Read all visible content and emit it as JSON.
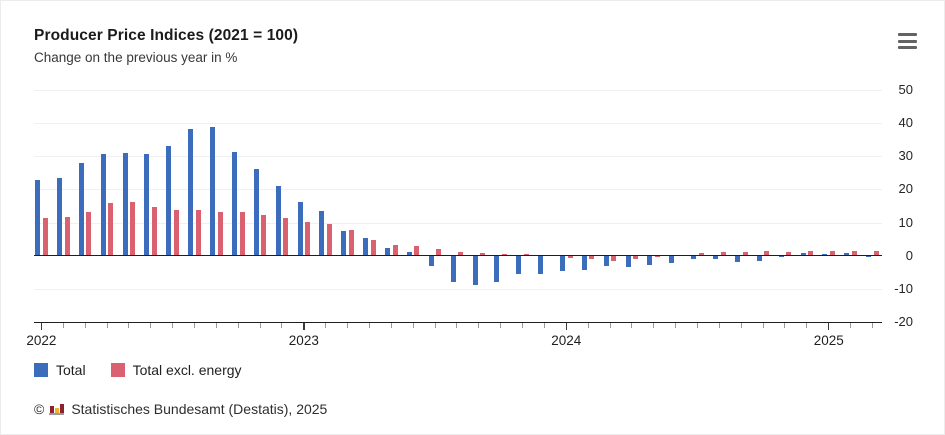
{
  "header": {
    "title": "Producer Price Indices (2021 = 100)",
    "subtitle": "Change on the previous year in %",
    "menu_icon": "hamburger-menu-icon"
  },
  "chart_data": {
    "type": "bar",
    "title": "Producer Price Indices (2021 = 100)",
    "subtitle": "Change on the previous year in %",
    "unit": "%",
    "x": [
      "2022-01",
      "2022-02",
      "2022-03",
      "2022-04",
      "2022-05",
      "2022-06",
      "2022-07",
      "2022-08",
      "2022-09",
      "2022-10",
      "2022-11",
      "2022-12",
      "2023-01",
      "2023-02",
      "2023-03",
      "2023-04",
      "2023-05",
      "2023-06",
      "2023-07",
      "2023-08",
      "2023-09",
      "2023-10",
      "2023-11",
      "2023-12",
      "2024-01",
      "2024-02",
      "2024-03",
      "2024-04",
      "2024-05",
      "2024-06",
      "2024-07",
      "2024-08",
      "2024-09",
      "2024-10",
      "2024-11",
      "2024-12",
      "2025-01",
      "2025-02",
      "2025-03"
    ],
    "x_tick_years": [
      "2022",
      "2023",
      "2024",
      "2025"
    ],
    "ylim": [
      -20,
      50
    ],
    "yticks": [
      50,
      40,
      30,
      20,
      10,
      0,
      -10,
      -20
    ],
    "grid": true,
    "legend_position": "bottom-left",
    "series": [
      {
        "name": "Total",
        "color": "#3c6dbd",
        "values": [
          22.8,
          23.5,
          28.0,
          30.5,
          30.9,
          30.5,
          32.9,
          38.3,
          38.7,
          31.3,
          26.0,
          21.0,
          16.3,
          13.5,
          7.4,
          5.2,
          2.4,
          1.0,
          -3.0,
          -7.9,
          -8.8,
          -7.8,
          -5.4,
          -5.6,
          -4.6,
          -4.2,
          -3.0,
          -3.3,
          -2.7,
          -2.1,
          -1.0,
          -1.0,
          -1.8,
          -1.6,
          -0.5,
          0.8,
          0.5,
          0.7,
          -0.2
        ]
      },
      {
        "name": "Total excl. energy",
        "color": "#d96170",
        "values": [
          11.5,
          11.7,
          13.2,
          15.8,
          16.2,
          14.8,
          13.9,
          13.8,
          13.3,
          13.3,
          12.2,
          11.4,
          10.3,
          9.5,
          7.8,
          4.6,
          3.2,
          2.9,
          2.0,
          1.2,
          0.8,
          0.5,
          0.4,
          0.3,
          -0.7,
          -1.0,
          -1.5,
          -1.0,
          -0.2,
          0.3,
          0.9,
          1.2,
          1.2,
          1.4,
          1.2,
          1.3,
          1.4,
          1.5,
          1.3
        ]
      }
    ]
  },
  "legend": {
    "items": [
      {
        "label": "Total",
        "color": "#3c6dbd"
      },
      {
        "label": "Total excl. energy",
        "color": "#d96170"
      }
    ]
  },
  "footer": {
    "copyright": "©",
    "logo": "destatis-bar-chart-icon",
    "source": "Statistisches Bundesamt (Destatis), 2025"
  },
  "colors": {
    "total": "#3c6dbd",
    "total_excl_energy": "#d96170",
    "gridline": "#f0f0f0",
    "axis": "#1f1f1f",
    "text": "#1b1b1b"
  }
}
